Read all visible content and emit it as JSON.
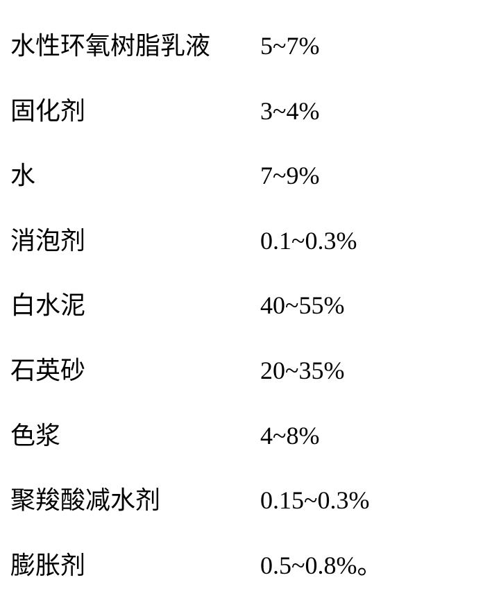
{
  "table": {
    "text_color": "#000000",
    "background_color": "#ffffff",
    "font_family": "SimSun",
    "font_size": 36,
    "rows": [
      {
        "name": "水性环氧树脂乳液",
        "value": "5~7%"
      },
      {
        "name": "固化剂",
        "value": "3~4%"
      },
      {
        "name": "水",
        "value": "7~9%"
      },
      {
        "name": "消泡剂",
        "value": "0.1~0.3%"
      },
      {
        "name": "白水泥",
        "value": "40~55%"
      },
      {
        "name": "石英砂",
        "value": "20~35%"
      },
      {
        "name": "色浆",
        "value": "4~8%"
      },
      {
        "name": "聚羧酸减水剂",
        "value": "0.15~0.3%"
      },
      {
        "name": "膨胀剂",
        "value": "0.5~0.8%。"
      }
    ]
  }
}
